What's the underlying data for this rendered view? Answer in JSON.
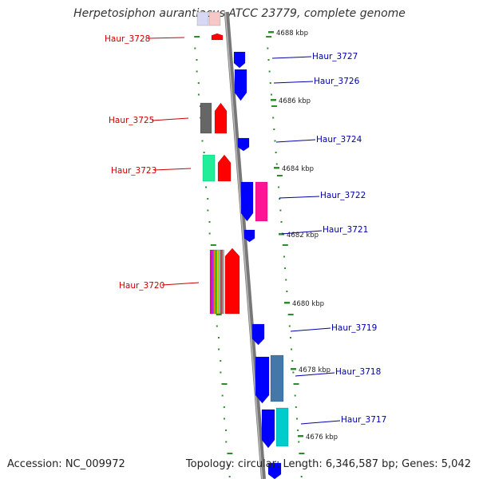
{
  "title": "Herpetosiphon aurantiacus ATCC 23779, complete genome",
  "footer": {
    "accession": "Accession: NC_009972",
    "summary": "Topology: circular; Length: 6,346,587 bp; Genes: 5,042"
  },
  "colors": {
    "backbone": "#808080",
    "tick": "#2e8b2e",
    "left_label": "#cc0000",
    "right_label": "#0000aa"
  },
  "scale_labels": [
    {
      "text": "4688 kbp"
    },
    {
      "text": "4686 kbp"
    },
    {
      "text": "4684 kbp"
    },
    {
      "text": "4682 kbp"
    },
    {
      "text": "4680 kbp"
    },
    {
      "text": "4678 kbp"
    },
    {
      "text": "4676 kbp"
    }
  ],
  "left_genes": [
    {
      "label": "Haur_3728"
    },
    {
      "label": "Haur_3725"
    },
    {
      "label": "Haur_3723"
    },
    {
      "label": "Haur_3720"
    }
  ],
  "right_genes": [
    {
      "label": "Haur_3727"
    },
    {
      "label": "Haur_3726"
    },
    {
      "label": "Haur_3724"
    },
    {
      "label": "Haur_3722"
    },
    {
      "label": "Haur_3721"
    },
    {
      "label": "Haur_3719"
    },
    {
      "label": "Haur_3718"
    },
    {
      "label": "Haur_3717"
    }
  ]
}
